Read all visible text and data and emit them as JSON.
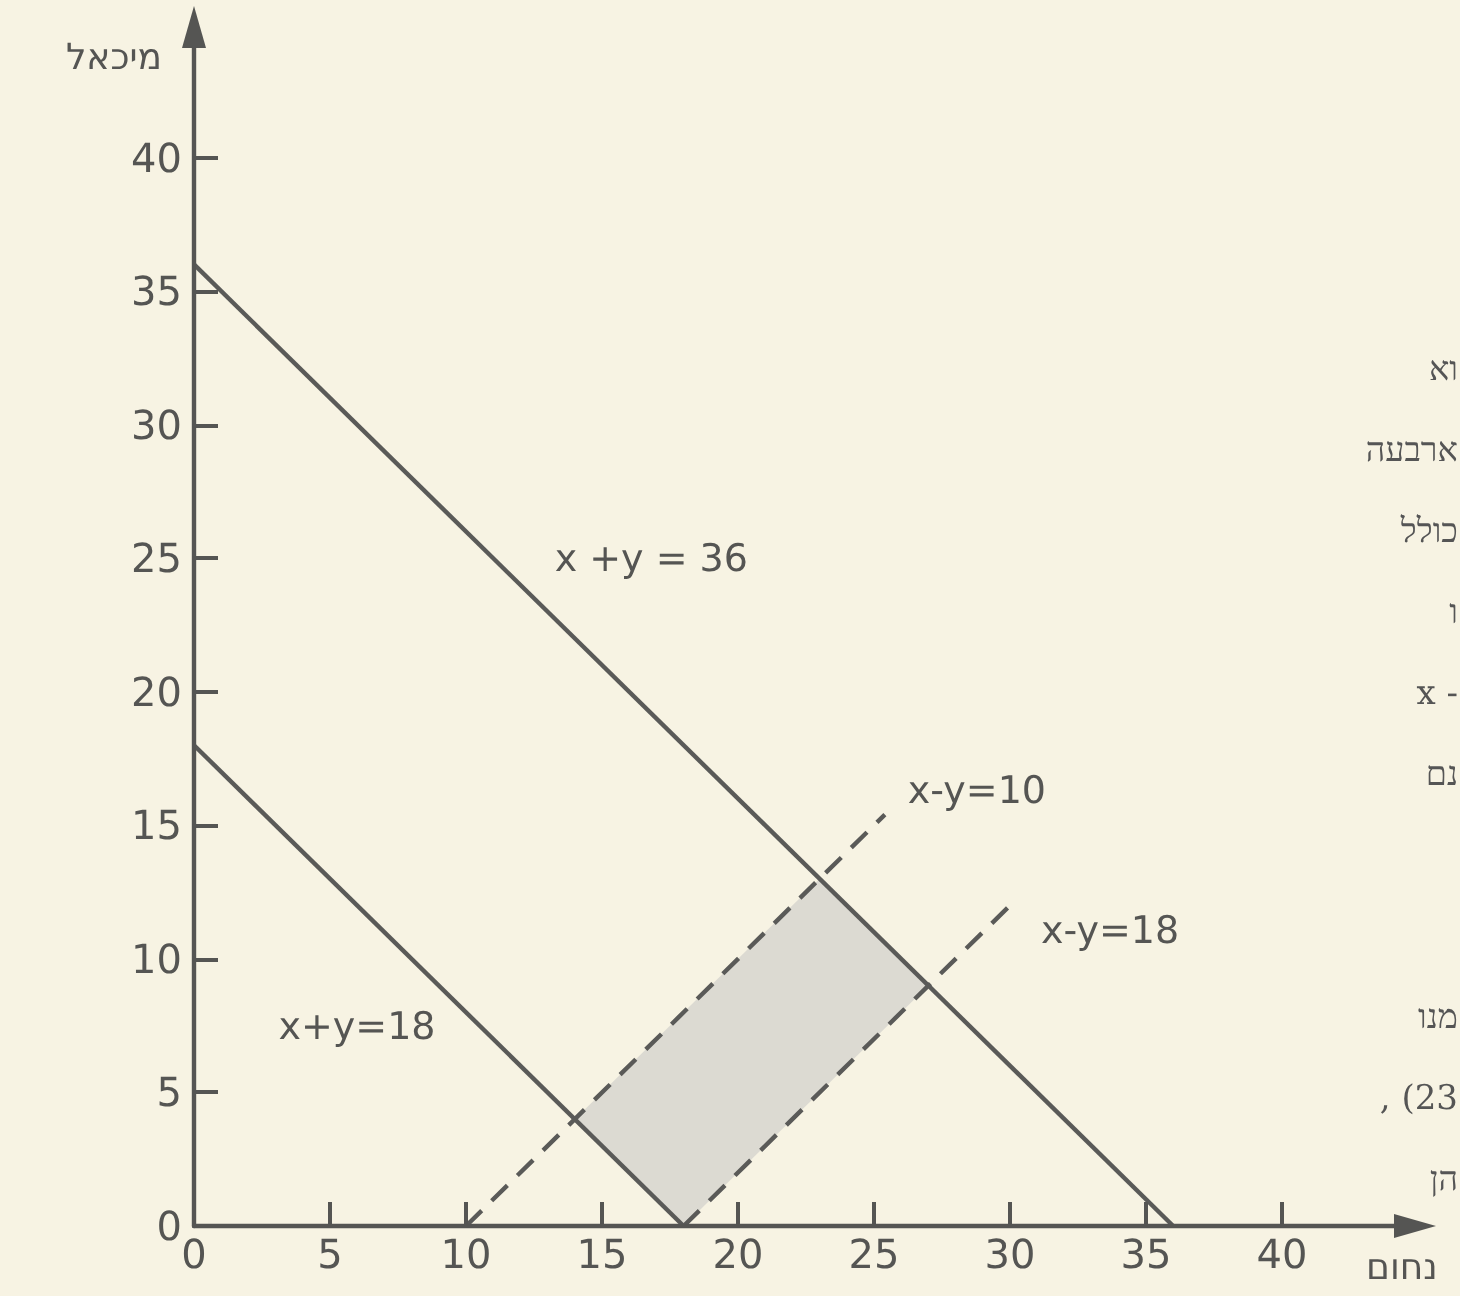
{
  "chart_data": {
    "type": "line",
    "xlabel": "נחום",
    "ylabel": "מיכאל",
    "xlim": [
      0,
      45
    ],
    "ylim": [
      0,
      45
    ],
    "xticks": [
      0,
      5,
      10,
      15,
      20,
      25,
      30,
      35,
      40
    ],
    "yticks": [
      0,
      5,
      10,
      15,
      20,
      25,
      30,
      35,
      40
    ],
    "grid": false,
    "marker": "none",
    "series": [
      {
        "name": "x +y = 36",
        "color": "#5a5a58",
        "line_style": "solid",
        "x": [
          0,
          36
        ],
        "values": [
          36,
          0
        ]
      },
      {
        "name": "x+y=18",
        "color": "#5a5a58",
        "line_style": "solid",
        "x": [
          0,
          18
        ],
        "values": [
          18,
          0
        ]
      },
      {
        "name": "x-y=10",
        "color": "#5a5a58",
        "line_style": "dashed",
        "x": [
          10,
          25.4
        ],
        "values": [
          0,
          15.4
        ]
      },
      {
        "name": "x-y=18",
        "color": "#5a5a58",
        "line_style": "dashed",
        "x": [
          18,
          30
        ],
        "values": [
          0,
          12
        ]
      }
    ],
    "annotations": [
      "וא",
      "ארבעה",
      "כולל",
      "ו",
      "x -",
      "נם",
      "מנו",
      ", (23",
      "הן"
    ]
  }
}
